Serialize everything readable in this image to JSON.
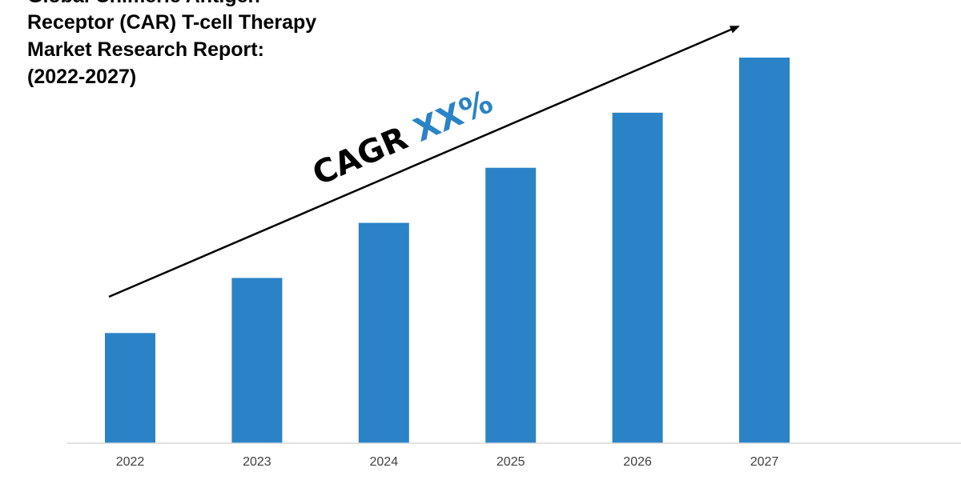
{
  "chart_data": {
    "type": "bar",
    "title_lines": [
      "Global Chimeric Antigen",
      "Receptor (CAR) T-cell Therapy",
      "Market Research Report:",
      "(2022-2027)"
    ],
    "categories": [
      "2022",
      "2023",
      "2024",
      "2025",
      "2026",
      "2027"
    ],
    "values": [
      1,
      1.5,
      2,
      2.5,
      3,
      3.5
    ],
    "ylim": [
      0,
      3.5
    ],
    "xlabel": "",
    "ylabel": "",
    "grid": false,
    "legend": "none",
    "annotation": {
      "prefix": "CAGR ",
      "value": "XX%"
    },
    "colors": {
      "bar": "#2a83c6",
      "cagr_value": "#2a83c6",
      "cagr_prefix": "#000000",
      "axis": "#d9d9d9",
      "arrow": "#000000"
    }
  }
}
